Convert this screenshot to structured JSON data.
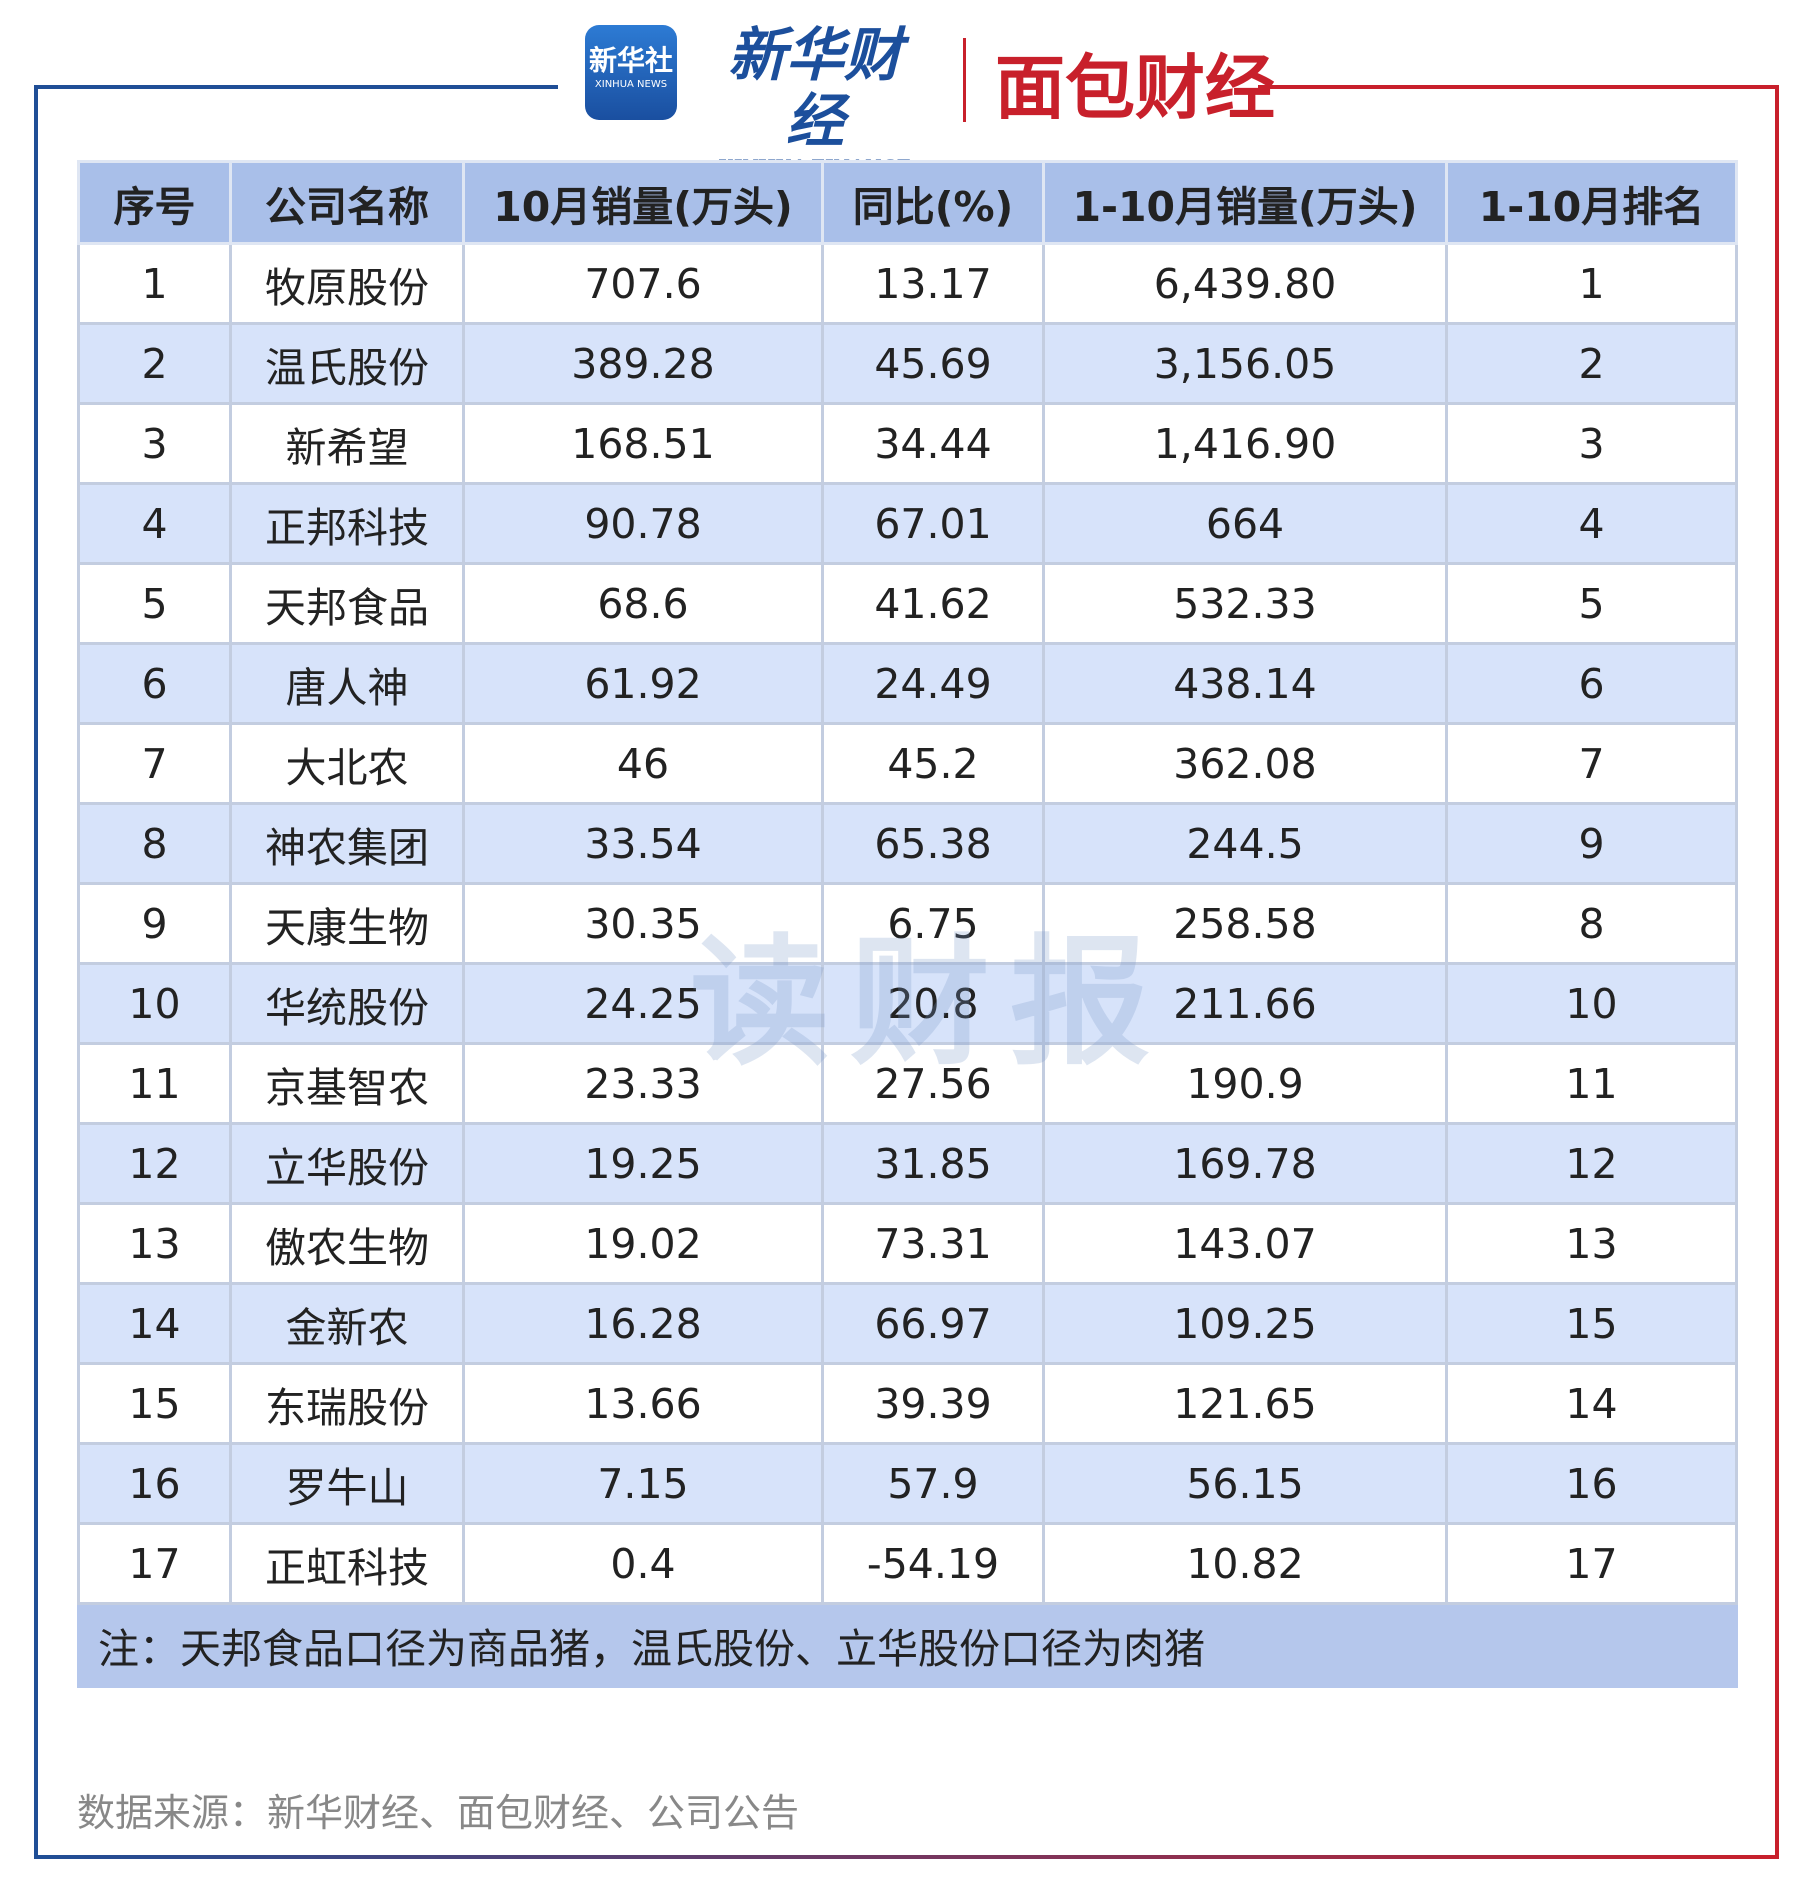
{
  "header": {
    "logo_left": {
      "name": "新华社",
      "sub": "XINHUA NEWS"
    },
    "logo_mid": {
      "name": "新华财经",
      "sub": "XINHUA FINANCE"
    },
    "logo_right": {
      "name": "面包财经"
    }
  },
  "watermark": "读财报",
  "table": {
    "columns": [
      "序号",
      "公司名称",
      "10月销量(万头)",
      "同比(%)",
      "1-10月销量(万头)",
      "1-10月排名"
    ],
    "rows": [
      [
        "1",
        "牧原股份",
        "707.6",
        "13.17",
        "6,439.80",
        "1"
      ],
      [
        "2",
        "温氏股份",
        "389.28",
        "45.69",
        "3,156.05",
        "2"
      ],
      [
        "3",
        "新希望",
        "168.51",
        "34.44",
        "1,416.90",
        "3"
      ],
      [
        "4",
        "正邦科技",
        "90.78",
        "67.01",
        "664",
        "4"
      ],
      [
        "5",
        "天邦食品",
        "68.6",
        "41.62",
        "532.33",
        "5"
      ],
      [
        "6",
        "唐人神",
        "61.92",
        "24.49",
        "438.14",
        "6"
      ],
      [
        "7",
        "大北农",
        "46",
        "45.2",
        "362.08",
        "7"
      ],
      [
        "8",
        "神农集团",
        "33.54",
        "65.38",
        "244.5",
        "9"
      ],
      [
        "9",
        "天康生物",
        "30.35",
        "6.75",
        "258.58",
        "8"
      ],
      [
        "10",
        "华统股份",
        "24.25",
        "20.8",
        "211.66",
        "10"
      ],
      [
        "11",
        "京基智农",
        "23.33",
        "27.56",
        "190.9",
        "11"
      ],
      [
        "12",
        "立华股份",
        "19.25",
        "31.85",
        "169.78",
        "12"
      ],
      [
        "13",
        "傲农生物",
        "19.02",
        "73.31",
        "143.07",
        "13"
      ],
      [
        "14",
        "金新农",
        "16.28",
        "66.97",
        "109.25",
        "15"
      ],
      [
        "15",
        "东瑞股份",
        "13.66",
        "39.39",
        "121.65",
        "14"
      ],
      [
        "16",
        "罗牛山",
        "7.15",
        "57.9",
        "56.15",
        "16"
      ],
      [
        "17",
        "正虹科技",
        "0.4",
        "-54.19",
        "10.82",
        "17"
      ]
    ],
    "note": "注：天邦食品口径为商品猪，温氏股份、立华股份口径为肉猪"
  },
  "source": "数据来源：新华财经、面包财经、公司公告"
}
